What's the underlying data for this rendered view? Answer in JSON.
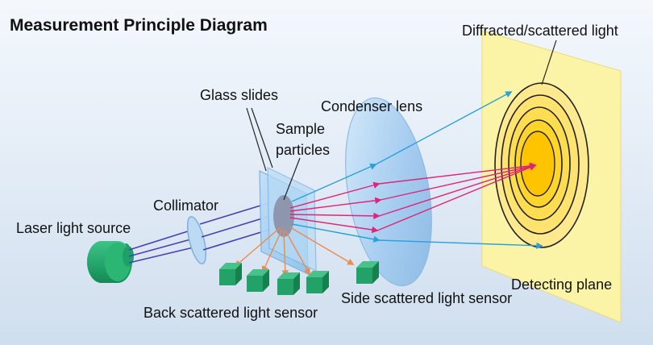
{
  "title": "Measurement Principle Diagram",
  "labels": {
    "diffracted": "Diffracted/scattered light",
    "glass_slides": "Glass slides",
    "condenser_lens": "Condenser lens",
    "sample_line1": "Sample",
    "sample_line2": "particles",
    "collimator": "Collimator",
    "laser": "Laser light source",
    "detecting_plane": "Detecting plane",
    "side_sensor": "Side scattered light sensor",
    "back_sensor": "Back scattered light sensor"
  },
  "colors": {
    "background_top": "#f4f8fd",
    "background_bottom": "#cfdeee",
    "laser_body": "#1fa06a",
    "laser_beam": "#4a3fb0",
    "lens": "#a9cff0",
    "scatter_ray": "#e0247a",
    "edge_ray": "#2aa0dc",
    "back_ray": "#f08a4b",
    "detector_plane": "#fbf3a6",
    "detector_center": "#ffc400",
    "sensor_box": "#22a266"
  }
}
